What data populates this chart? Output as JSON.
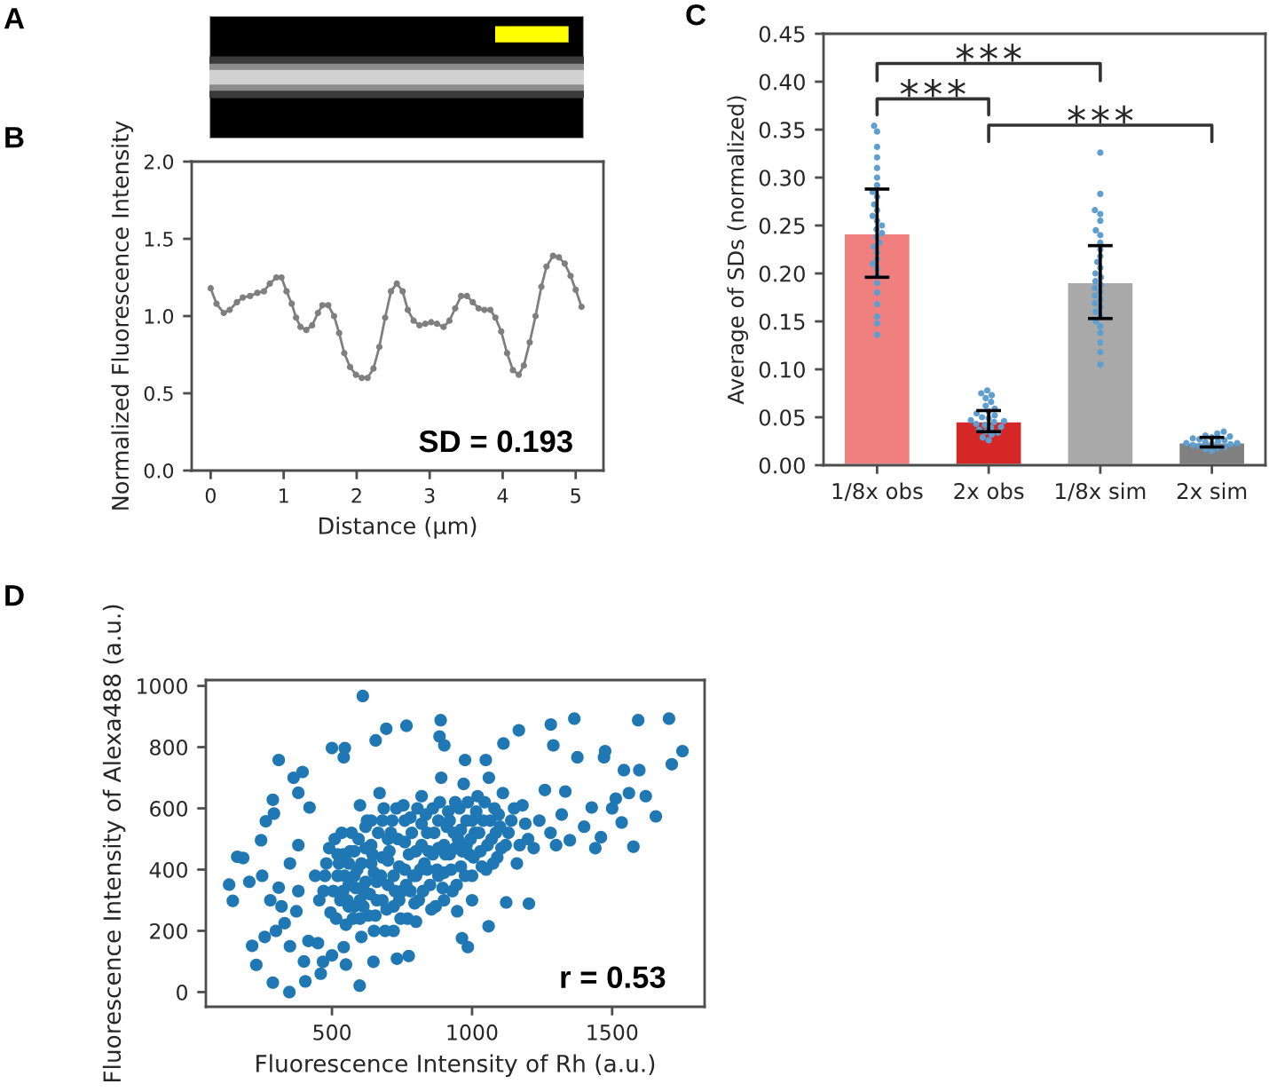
{
  "chart_data": [
    {
      "type": "other",
      "title": "A"
    },
    {
      "type": "line",
      "title": "B",
      "xlabel": "Distance (µm)",
      "ylabel": "Normalized Fluorescence Intensity",
      "marker": "circle",
      "x": [
        0,
        0.08,
        0.18,
        0.26,
        0.36,
        0.44,
        0.54,
        0.64,
        0.73,
        0.81,
        0.9,
        0.97,
        1.04,
        1.11,
        1.17,
        1.23,
        1.31,
        1.39,
        1.47,
        1.53,
        1.61,
        1.69,
        1.76,
        1.83,
        1.91,
        1.99,
        2.07,
        2.15,
        2.23,
        2.31,
        2.39,
        2.47,
        2.55,
        2.63,
        2.7,
        2.78,
        2.86,
        2.94,
        3.02,
        3.1,
        3.19,
        3.27,
        3.35,
        3.43,
        3.51,
        3.59,
        3.67,
        3.75,
        3.83,
        3.9,
        3.98,
        4.06,
        4.14,
        4.22,
        4.29,
        4.37,
        4.45,
        4.53,
        4.6,
        4.69,
        4.77,
        4.85,
        4.93,
        5.0,
        5.08
      ],
      "series": [
        {
          "color": "#7f7f7f",
          "values": [
            1.18,
            1.08,
            1.02,
            1.04,
            1.09,
            1.12,
            1.13,
            1.15,
            1.16,
            1.21,
            1.25,
            1.25,
            1.16,
            1.08,
            0.99,
            0.93,
            0.91,
            0.94,
            1.02,
            1.07,
            1.07,
            1.0,
            0.89,
            0.76,
            0.67,
            0.62,
            0.6,
            0.6,
            0.66,
            0.8,
            0.99,
            1.16,
            1.21,
            1.16,
            1.04,
            0.97,
            0.94,
            0.95,
            0.96,
            0.95,
            0.93,
            0.97,
            1.05,
            1.13,
            1.13,
            1.09,
            1.05,
            1.04,
            1.04,
            0.99,
            0.9,
            0.76,
            0.65,
            0.62,
            0.68,
            0.83,
            1.0,
            1.19,
            1.32,
            1.39,
            1.38,
            1.34,
            1.26,
            1.17,
            1.06
          ]
        }
      ],
      "xlim": [
        -0.26,
        5.38
      ],
      "ylim": [
        0,
        2
      ],
      "xticks": [
        0,
        1,
        2,
        3,
        4,
        5
      ],
      "yticks": [
        {
          "value": 0,
          "label": "0.0"
        },
        {
          "value": 0.5,
          "label": "0.5"
        },
        {
          "value": 1,
          "label": "1.0"
        },
        {
          "value": 1.5,
          "label": "1.5"
        },
        {
          "value": 2,
          "label": "2.0"
        }
      ],
      "annotations": [
        "SD = 0.193"
      ]
    },
    {
      "type": "bar",
      "title": "C",
      "ylabel": "Average of SDs (normalized)",
      "categories": [
        "1/8x obs",
        "2x obs",
        "1/8x sim",
        "2x sim"
      ],
      "series": [
        {
          "type": "bar",
          "values": [
            0.242,
            0.046,
            0.191,
            0.024
          ],
          "colors": [
            "#f08080",
            "#d62728",
            "#a9a9a9",
            "#808080"
          ],
          "errors": [
            0.046,
            0.011,
            0.038,
            0.005
          ]
        },
        {
          "type": "scatter",
          "color": "#5f9fcf",
          "x": [
            "1/8x obs",
            "1/8x obs",
            "1/8x obs",
            "1/8x obs",
            "1/8x obs",
            "1/8x obs",
            "1/8x obs",
            "1/8x obs",
            "1/8x obs",
            "1/8x obs",
            "1/8x obs",
            "1/8x obs",
            "1/8x obs",
            "1/8x obs",
            "1/8x obs",
            "1/8x obs",
            "1/8x obs",
            "1/8x obs",
            "1/8x obs",
            "1/8x obs",
            "1/8x obs",
            "1/8x obs",
            "1/8x obs",
            "1/8x obs",
            "1/8x obs",
            "1/8x obs",
            "1/8x obs",
            "1/8x obs",
            "1/8x obs",
            "1/8x obs",
            "2x obs",
            "2x obs",
            "2x obs",
            "2x obs",
            "2x obs",
            "2x obs",
            "2x obs",
            "2x obs",
            "2x obs",
            "2x obs",
            "2x obs",
            "2x obs",
            "2x obs",
            "2x obs",
            "2x obs",
            "2x obs",
            "2x obs",
            "2x obs",
            "2x obs",
            "2x obs",
            "2x obs",
            "2x obs",
            "2x obs",
            "2x obs",
            "2x obs",
            "1/8x sim",
            "1/8x sim",
            "1/8x sim",
            "1/8x sim",
            "1/8x sim",
            "1/8x sim",
            "1/8x sim",
            "1/8x sim",
            "1/8x sim",
            "1/8x sim",
            "1/8x sim",
            "1/8x sim",
            "1/8x sim",
            "1/8x sim",
            "1/8x sim",
            "1/8x sim",
            "1/8x sim",
            "1/8x sim",
            "1/8x sim",
            "1/8x sim",
            "1/8x sim",
            "1/8x sim",
            "1/8x sim",
            "1/8x sim",
            "1/8x sim",
            "1/8x sim",
            "1/8x sim",
            "1/8x sim",
            "1/8x sim",
            "1/8x sim",
            "2x sim",
            "2x sim",
            "2x sim",
            "2x sim",
            "2x sim",
            "2x sim",
            "2x sim",
            "2x sim",
            "2x sim",
            "2x sim",
            "2x sim",
            "2x sim",
            "2x sim",
            "2x sim",
            "2x sim",
            "2x sim",
            "2x sim",
            "2x sim",
            "2x sim",
            "2x sim"
          ],
          "values": [
            0.354,
            0.348,
            0.332,
            0.321,
            0.31,
            0.3,
            0.292,
            0.285,
            0.28,
            0.272,
            0.266,
            0.26,
            0.255,
            0.25,
            0.246,
            0.242,
            0.238,
            0.232,
            0.228,
            0.222,
            0.215,
            0.21,
            0.205,
            0.198,
            0.19,
            0.18,
            0.168,
            0.155,
            0.148,
            0.136,
            0.078,
            0.075,
            0.073,
            0.07,
            0.066,
            0.062,
            0.059,
            0.056,
            0.054,
            0.052,
            0.05,
            0.049,
            0.047,
            0.046,
            0.045,
            0.043,
            0.042,
            0.04,
            0.039,
            0.037,
            0.035,
            0.034,
            0.032,
            0.029,
            0.026,
            0.326,
            0.283,
            0.266,
            0.262,
            0.255,
            0.245,
            0.24,
            0.232,
            0.225,
            0.218,
            0.212,
            0.206,
            0.2,
            0.196,
            0.192,
            0.188,
            0.185,
            0.181,
            0.177,
            0.173,
            0.169,
            0.165,
            0.16,
            0.155,
            0.15,
            0.145,
            0.138,
            0.128,
            0.118,
            0.105,
            0.035,
            0.033,
            0.031,
            0.03,
            0.029,
            0.028,
            0.027,
            0.026,
            0.025,
            0.024,
            0.023,
            0.023,
            0.022,
            0.022,
            0.021,
            0.02,
            0.019,
            0.018,
            0.017,
            0.015
          ]
        }
      ],
      "ylim": [
        0,
        0.45
      ],
      "yticks": [
        {
          "value": 0,
          "label": "0.00"
        },
        {
          "value": 0.05,
          "label": "0.05"
        },
        {
          "value": 0.1,
          "label": "0.10"
        },
        {
          "value": 0.15,
          "label": "0.15"
        },
        {
          "value": 0.2,
          "label": "0.20"
        },
        {
          "value": 0.25,
          "label": "0.25"
        },
        {
          "value": 0.3,
          "label": "0.30"
        },
        {
          "value": 0.35,
          "label": "0.35"
        },
        {
          "value": 0.4,
          "label": "0.40"
        },
        {
          "value": 0.45,
          "label": "0.45"
        }
      ],
      "annotations": [
        "***",
        "***",
        "***"
      ]
    },
    {
      "type": "scatter",
      "title": "D",
      "xlabel": "Fluorescence Intensity of Rh (a.u.)",
      "ylabel": "Fluorescence Intensity of Alexa488 (a.u.)",
      "marker": "circle",
      "series": [
        {
          "color": "#1f77b4",
          "x": [
            610,
            133,
            146,
            162,
            183,
            205,
            215,
            247,
            251,
            264,
            289,
            293,
            310,
            230,
            289,
            348,
            363,
            395,
            380,
            420,
            500,
            546,
            542,
            599,
            656,
            694,
            766,
            884,
            888,
            901,
            975,
            1049,
            985,
            1059,
            1122,
            1203,
            1112,
            1167,
            1281,
            1290,
            1365,
            1376,
            1471,
            1475,
            1542,
            1597,
            1593,
            1703,
            1713,
            1751,
            1656,
            1576,
            1460,
            1534,
            1513,
            1427,
            1349,
            1333,
            964,
            947,
            774,
            732,
            648,
            542,
            468,
            405,
            310,
            331,
            373,
            416,
            300,
            320,
            350,
            380,
            400,
            440,
            280,
            260,
            350,
            380,
            450,
            460,
            500,
            550,
            470,
            480,
            495,
            510,
            520,
            530,
            540,
            550,
            560,
            570,
            580,
            590,
            600,
            605,
            615,
            620,
            630,
            640,
            650,
            660,
            670,
            680,
            690,
            700,
            710,
            720,
            730,
            740,
            750,
            760,
            770,
            780,
            790,
            800,
            810,
            820,
            830,
            840,
            850,
            860,
            870,
            880,
            890,
            900,
            910,
            920,
            930,
            940,
            950,
            960,
            970,
            980,
            990,
            1000,
            1010,
            1020,
            1030,
            1040,
            1050,
            1060,
            1070,
            1080,
            1090,
            1100,
            1110,
            1120,
            1140,
            1160,
            1180,
            1200,
            1220,
            1240,
            1260,
            1280,
            1300,
            1320,
            1400,
            1440,
            1500,
            1560,
            1620,
            520,
            540,
            560,
            580,
            600,
            620,
            640,
            660,
            680,
            700,
            720,
            740,
            760,
            780,
            800,
            820,
            840,
            860,
            880,
            900,
            920,
            940,
            960,
            980,
            1000,
            640,
            700,
            760,
            820,
            880,
            580,
            620,
            680,
            560,
            600,
            650,
            720,
            800,
            900,
            1000,
            455,
            475,
            490,
            505,
            515,
            525,
            535,
            545,
            555,
            565,
            575,
            585,
            595,
            605,
            612,
            625,
            635,
            645,
            655,
            665,
            675,
            685,
            695,
            705,
            715,
            725,
            735,
            745,
            755,
            765,
            775,
            785,
            795,
            805,
            815,
            825,
            835,
            845,
            855,
            865,
            875,
            885,
            895,
            905,
            915,
            925,
            935,
            945,
            955,
            965,
            975,
            985,
            995,
            1005,
            1015,
            1025,
            1035,
            1045,
            1055,
            1065,
            1075,
            1085,
            1095,
            1105,
            1130,
            1150,
            1170,
            1190
          ],
          "values": [
            967,
            351,
            298,
            442,
            438,
            360,
            151,
            496,
            380,
            558,
            628,
            583,
            758,
            89,
            31,
            0,
            700,
            719,
            651,
            603,
            797,
            797,
            767,
            21,
            822,
            860,
            870,
            835,
            888,
            806,
            758,
            758,
            147,
            215,
            293,
            289,
            812,
            855,
            874,
            806,
            893,
            767,
            767,
            787,
            725,
            725,
            888,
            893,
            744,
            787,
            574,
            475,
            506,
            554,
            632,
            603,
            496,
            655,
            176,
            264,
            118,
            109,
            99,
            147,
            99,
            35,
            341,
            225,
            264,
            167,
            200,
            280,
            150,
            330,
            100,
            380,
            300,
            180,
            420,
            480,
            160,
            60,
            120,
            90,
            330,
            420,
            260,
            500,
            380,
            300,
            450,
            220,
            350,
            520,
            280,
            400,
            610,
            180,
            330,
            470,
            250,
            560,
            390,
            300,
            650,
            440,
            200,
            350,
            520,
            280,
            600,
            410,
            330,
            490,
            240,
            570,
            380,
            460,
            300,
            640,
            420,
            520,
            350,
            600,
            280,
            470,
            700,
            390,
            540,
            450,
            330,
            620,
            500,
            410,
            680,
            560,
            450,
            380,
            520,
            640,
            460,
            560,
            400,
            700,
            500,
            600,
            440,
            540,
            650,
            480,
            560,
            420,
            610,
            500,
            470,
            560,
            660,
            520,
            480,
            580,
            540,
            470,
            600,
            650,
            640,
            450,
            330,
            420,
            380,
            300,
            360,
            420,
            360,
            300,
            430,
            380,
            300,
            400,
            330,
            380,
            480,
            400,
            450,
            380,
            480,
            560,
            470,
            530,
            480,
            560,
            480,
            500,
            560,
            550,
            560,
            460,
            540,
            560,
            280,
            240,
            200,
            200,
            230,
            300,
            300,
            300,
            380,
            470,
            330,
            240,
            420,
            520,
            380,
            300,
            460,
            240,
            340,
            500,
            420,
            280,
            560,
            320,
            450,
            250,
            520,
            380,
            600,
            270,
            460,
            560,
            330,
            500,
            240,
            610,
            350,
            450,
            520,
            290,
            600,
            400,
            330,
            580,
            460,
            270,
            520,
            400,
            620,
            340,
            450,
            590,
            400,
            520,
            350,
            600,
            460,
            380,
            620,
            500,
            440,
            590,
            520,
            410,
            620,
            480,
            560,
            420,
            520,
            580,
            470,
            520,
            600,
            480,
            550
          ]
        }
      ],
      "xlim": [
        50,
        1830
      ],
      "ylim": [
        -48,
        1019
      ],
      "xticks": [
        500,
        1000,
        1500
      ],
      "yticks": [
        0,
        200,
        400,
        600,
        800,
        1000
      ],
      "annotations": [
        "r = 0.53"
      ]
    }
  ]
}
